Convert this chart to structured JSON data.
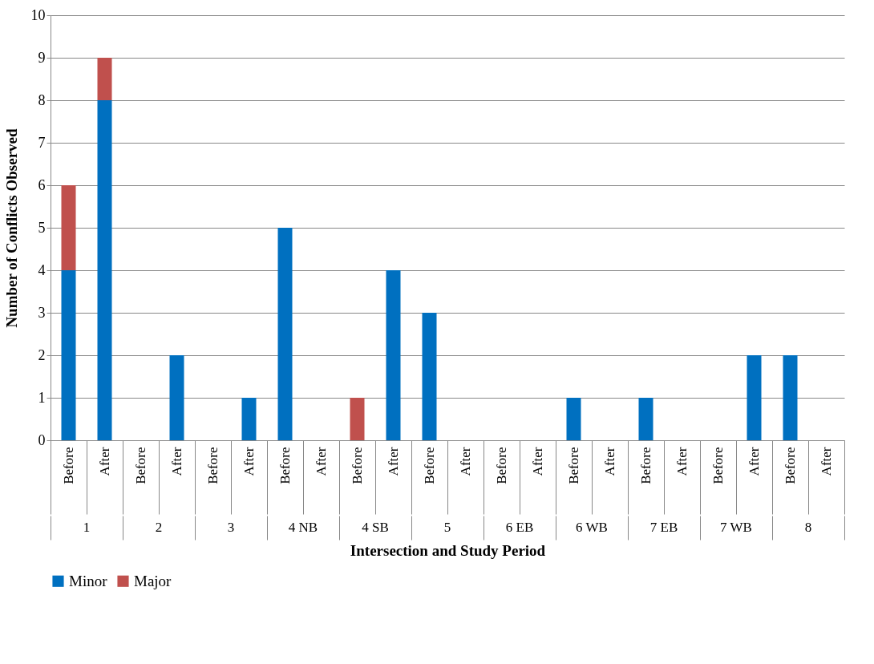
{
  "chart_data": {
    "type": "bar",
    "stacked": true,
    "xlabel": "Intersection and Study Period",
    "ylabel": "Number of Conflicts Observed",
    "categories": [
      "Before",
      "After",
      "Before",
      "After",
      "Before",
      "After",
      "Before",
      "After",
      "Before",
      "After",
      "Before",
      "After",
      "Before",
      "After",
      "Before",
      "After",
      "Before",
      "After",
      "Before",
      "After",
      "Before",
      "After"
    ],
    "annotations": [
      "1",
      "2",
      "3",
      "4 NB",
      "4 SB",
      "5",
      "6 EB",
      "6 WB",
      "7 EB",
      "7 WB",
      "8"
    ],
    "series": [
      {
        "name": "Minor",
        "color": "#0070c0",
        "values": [
          4,
          8,
          0,
          2,
          0,
          1,
          5,
          0,
          0,
          4,
          3,
          0,
          0,
          0,
          1,
          0,
          1,
          0,
          0,
          2,
          2,
          0
        ]
      },
      {
        "name": "Major",
        "color": "#c0504d",
        "values": [
          2,
          1,
          0,
          0,
          0,
          0,
          0,
          0,
          1,
          0,
          0,
          0,
          0,
          0,
          0,
          0,
          0,
          0,
          0,
          0,
          0,
          0
        ]
      }
    ],
    "ylim": [
      0,
      10
    ],
    "yticks": [
      0,
      1,
      2,
      3,
      4,
      5,
      6,
      7,
      8,
      9,
      10
    ],
    "grid": "y",
    "legend": "bottom"
  }
}
